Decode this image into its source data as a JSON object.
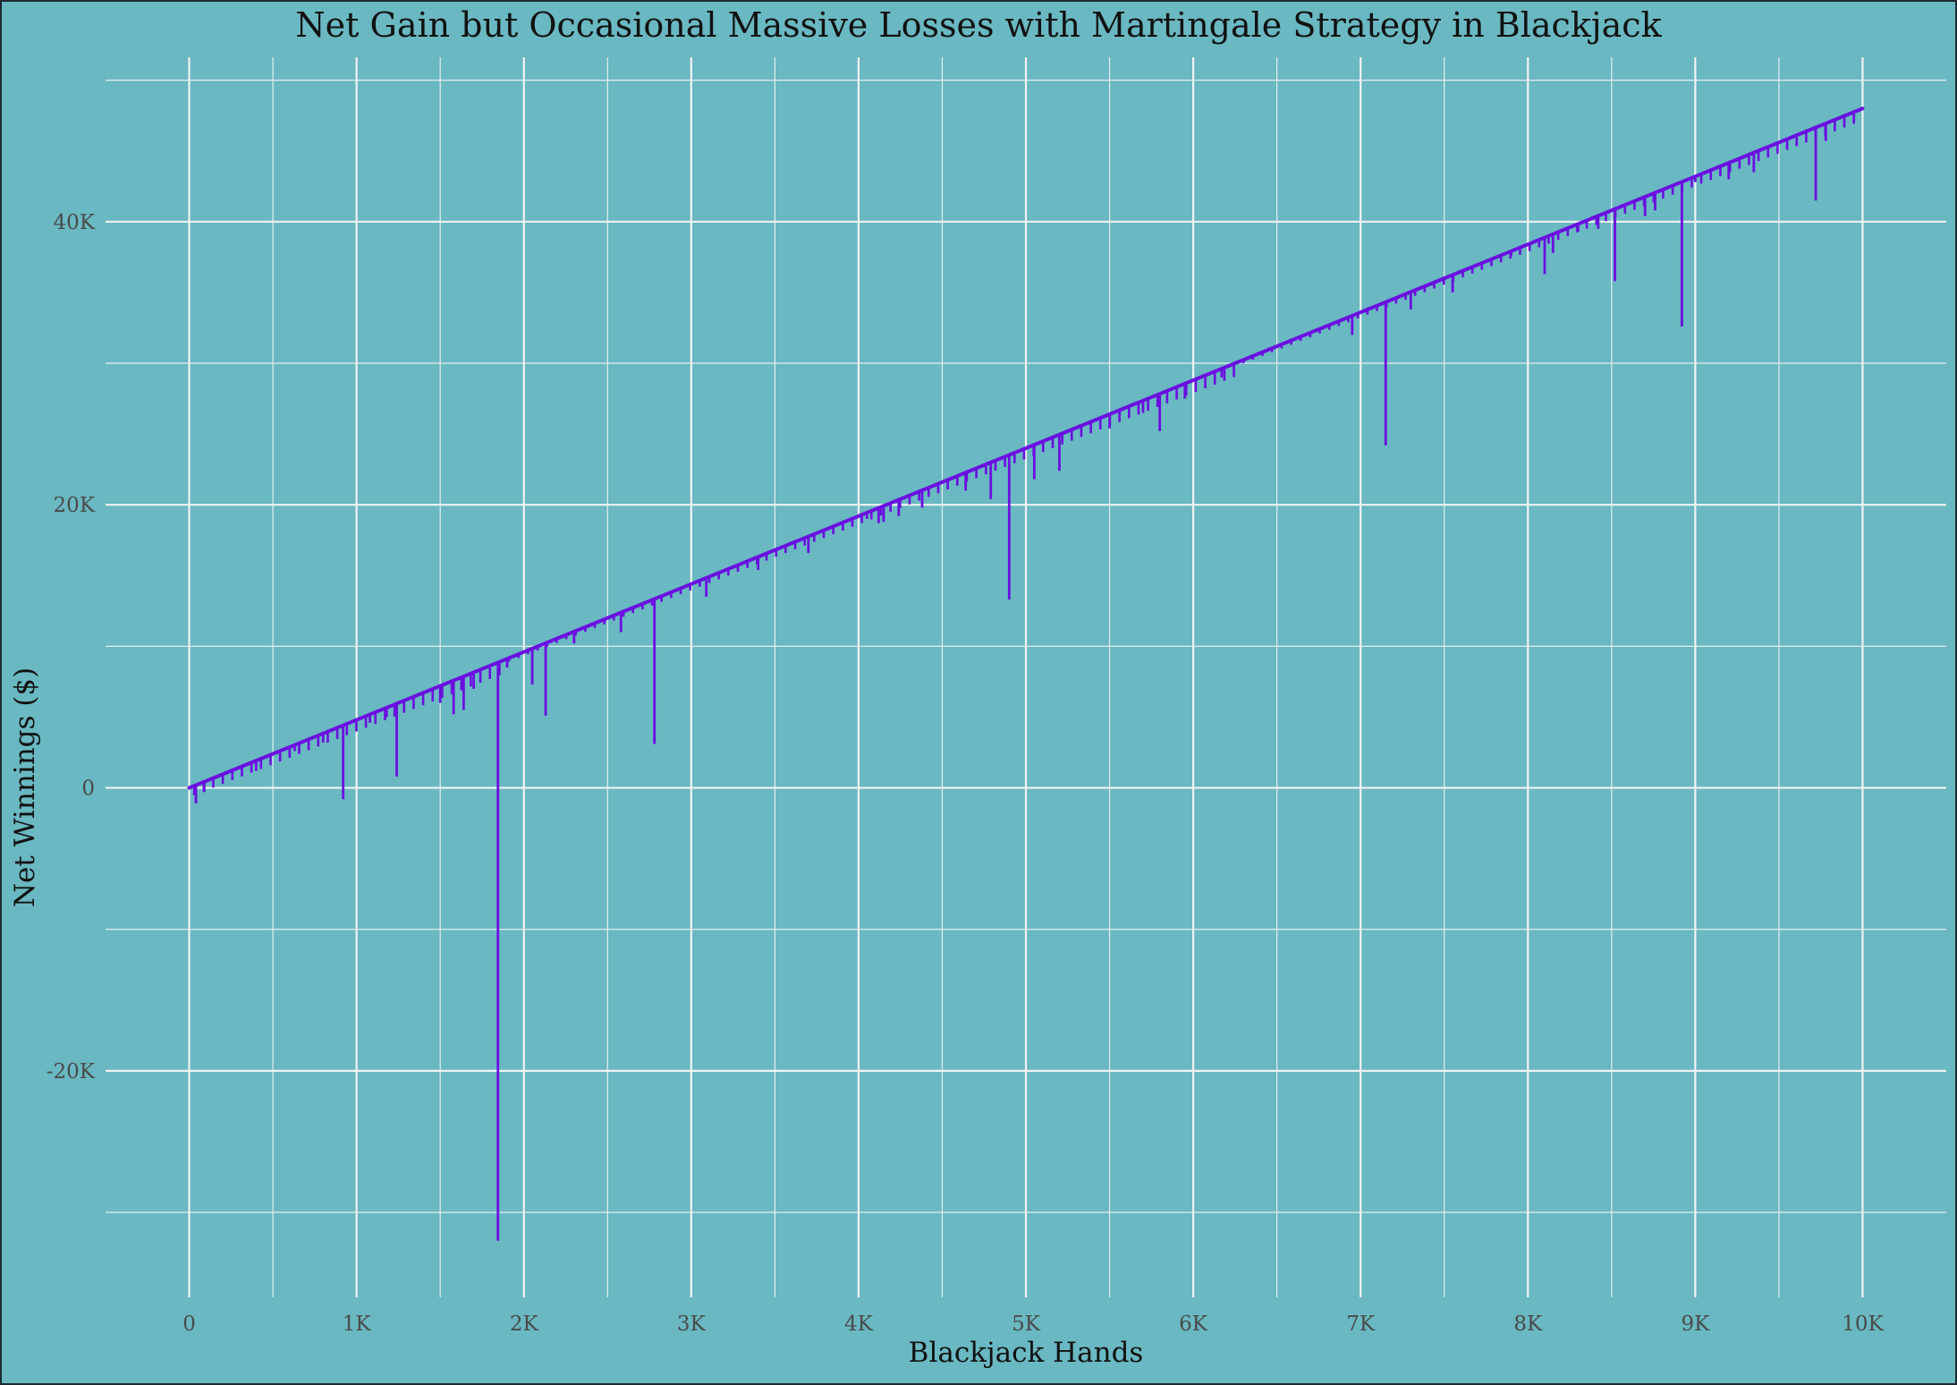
{
  "chart_data": {
    "type": "line",
    "title": "Net Gain but Occasional Massive Losses with Martingale Strategy in Blackjack",
    "xlabel": "Blackjack Hands",
    "ylabel": "Net Winnings ($)",
    "xlim": [
      -500,
      10500
    ],
    "ylim": [
      -36000,
      52000
    ],
    "x_ticks": [
      0,
      1000,
      2000,
      3000,
      4000,
      5000,
      6000,
      7000,
      8000,
      9000,
      10000
    ],
    "x_tick_labels": [
      "0",
      "1K",
      "2K",
      "3K",
      "4K",
      "5K",
      "6K",
      "7K",
      "8K",
      "9K",
      "10K"
    ],
    "y_ticks": [
      -20000,
      0,
      20000,
      40000
    ],
    "y_tick_labels": [
      "-20K",
      "0",
      "20K",
      "40K"
    ],
    "grid": true,
    "line_color": "#6a0fe0",
    "background_color": "#69b8c2",
    "series": [
      {
        "name": "",
        "trend": [
          [
            0,
            0
          ],
          [
            10000,
            48000
          ]
        ],
        "drops": [
          [
            40,
            -1100
          ],
          [
            90,
            -300
          ],
          [
            400,
            1200
          ],
          [
            630,
            2600
          ],
          [
            800,
            3200
          ],
          [
            920,
            -800
          ],
          [
            1080,
            4600
          ],
          [
            1180,
            5000
          ],
          [
            1240,
            800
          ],
          [
            1500,
            6000
          ],
          [
            1580,
            5200
          ],
          [
            1640,
            5500
          ],
          [
            1700,
            7000
          ],
          [
            1845,
            -32000
          ],
          [
            1900,
            8500
          ],
          [
            2050,
            7300
          ],
          [
            2130,
            5100
          ],
          [
            2300,
            10200
          ],
          [
            2580,
            11000
          ],
          [
            2780,
            3100
          ],
          [
            3090,
            13500
          ],
          [
            3400,
            15400
          ],
          [
            3700,
            16600
          ],
          [
            4050,
            19000
          ],
          [
            4120,
            18700
          ],
          [
            4150,
            18800
          ],
          [
            4240,
            19200
          ],
          [
            4380,
            19800
          ],
          [
            4640,
            21000
          ],
          [
            4790,
            20400
          ],
          [
            4900,
            13300
          ],
          [
            5050,
            21800
          ],
          [
            5200,
            22400
          ],
          [
            5500,
            25400
          ],
          [
            5560,
            26300
          ],
          [
            5700,
            26500
          ],
          [
            5800,
            25200
          ],
          [
            5950,
            27500
          ],
          [
            6170,
            29000
          ],
          [
            6450,
            31000
          ],
          [
            6950,
            32000
          ],
          [
            7150,
            24200
          ],
          [
            7300,
            33800
          ],
          [
            7550,
            35000
          ],
          [
            7900,
            37600
          ],
          [
            8100,
            36300
          ],
          [
            8150,
            37800
          ],
          [
            8300,
            39300
          ],
          [
            8420,
            39500
          ],
          [
            8520,
            35800
          ],
          [
            8700,
            40400
          ],
          [
            8760,
            40800
          ],
          [
            8920,
            32600
          ],
          [
            9000,
            42800
          ],
          [
            9200,
            43000
          ],
          [
            9350,
            43500
          ],
          [
            9720,
            41500
          ],
          [
            9780,
            45700
          ]
        ]
      }
    ]
  }
}
